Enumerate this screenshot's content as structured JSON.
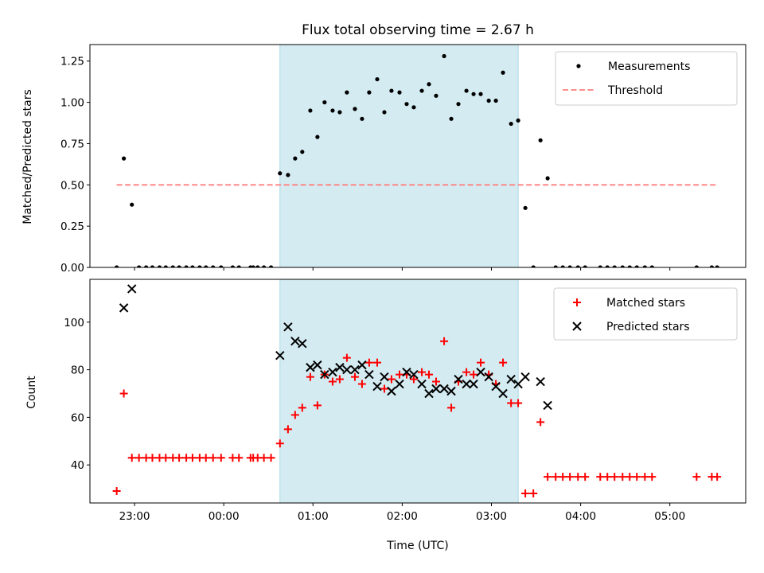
{
  "chart_data": [
    {
      "type": "scatter",
      "title": "Flux total observing time = 2.67 h",
      "xlabel": "",
      "ylabel": "Matched/Predicted stars",
      "xlim": [
        -1.5,
        5.85
      ],
      "ylim": [
        0.0,
        1.35
      ],
      "yticks": [
        0.0,
        0.25,
        0.5,
        0.75,
        1.0,
        1.25
      ],
      "ytick_labels": [
        "0.00",
        "0.25",
        "0.50",
        "0.75",
        "1.00",
        "1.25"
      ],
      "xticks": [
        -1,
        0,
        1,
        2,
        3,
        4,
        5
      ],
      "shaded_span": [
        0.63,
        3.3
      ],
      "shade_color": "#d4ebf2",
      "legend": {
        "placement": "top-right",
        "entries": [
          "Measurements",
          "Threshold"
        ]
      },
      "series": [
        {
          "name": "Measurements",
          "marker": "dot",
          "color": "#000000",
          "points": [
            [
              -1.2,
              0.0
            ],
            [
              -1.12,
              0.66
            ],
            [
              -1.03,
              0.38
            ],
            [
              -0.95,
              0.0
            ],
            [
              -0.87,
              0.0
            ],
            [
              -0.8,
              0.0
            ],
            [
              -0.72,
              0.0
            ],
            [
              -0.65,
              0.0
            ],
            [
              -0.57,
              0.0
            ],
            [
              -0.5,
              0.0
            ],
            [
              -0.42,
              0.0
            ],
            [
              -0.35,
              0.0
            ],
            [
              -0.27,
              0.0
            ],
            [
              -0.2,
              0.0
            ],
            [
              -0.12,
              0.0
            ],
            [
              -0.03,
              0.0
            ],
            [
              0.1,
              0.0
            ],
            [
              0.17,
              0.0
            ],
            [
              0.3,
              0.0
            ],
            [
              0.33,
              0.0
            ],
            [
              0.38,
              0.0
            ],
            [
              0.45,
              0.0
            ],
            [
              0.53,
              0.0
            ],
            [
              0.63,
              0.57
            ],
            [
              0.72,
              0.56
            ],
            [
              0.8,
              0.66
            ],
            [
              0.88,
              0.7
            ],
            [
              0.97,
              0.95
            ],
            [
              1.05,
              0.79
            ],
            [
              1.13,
              1.0
            ],
            [
              1.22,
              0.95
            ],
            [
              1.3,
              0.94
            ],
            [
              1.38,
              1.06
            ],
            [
              1.47,
              0.96
            ],
            [
              1.55,
              0.9
            ],
            [
              1.63,
              1.06
            ],
            [
              1.72,
              1.14
            ],
            [
              1.8,
              0.94
            ],
            [
              1.88,
              1.07
            ],
            [
              1.97,
              1.06
            ],
            [
              2.05,
              0.99
            ],
            [
              2.13,
              0.97
            ],
            [
              2.22,
              1.07
            ],
            [
              2.3,
              1.11
            ],
            [
              2.38,
              1.04
            ],
            [
              2.47,
              1.28
            ],
            [
              2.55,
              0.9
            ],
            [
              2.63,
              0.99
            ],
            [
              2.72,
              1.07
            ],
            [
              2.8,
              1.05
            ],
            [
              2.88,
              1.05
            ],
            [
              2.97,
              1.01
            ],
            [
              3.05,
              1.01
            ],
            [
              3.13,
              1.18
            ],
            [
              3.22,
              0.87
            ],
            [
              3.3,
              0.89
            ],
            [
              3.38,
              0.36
            ],
            [
              3.47,
              0.0
            ],
            [
              3.55,
              0.77
            ],
            [
              3.63,
              0.54
            ],
            [
              3.72,
              0.0
            ],
            [
              3.8,
              0.0
            ],
            [
              3.88,
              0.0
            ],
            [
              3.97,
              0.0
            ],
            [
              4.05,
              0.0
            ],
            [
              4.22,
              0.0
            ],
            [
              4.3,
              0.0
            ],
            [
              4.38,
              0.0
            ],
            [
              4.47,
              0.0
            ],
            [
              4.55,
              0.0
            ],
            [
              4.63,
              0.0
            ],
            [
              4.72,
              0.0
            ],
            [
              4.8,
              0.0
            ],
            [
              5.3,
              0.0
            ],
            [
              5.47,
              0.0
            ],
            [
              5.53,
              0.0
            ]
          ]
        },
        {
          "name": "Threshold",
          "marker": "dashed-line",
          "color": "#ff7f7f",
          "points": [
            [
              -1.2,
              0.5
            ],
            [
              5.53,
              0.5
            ]
          ]
        }
      ]
    },
    {
      "type": "scatter",
      "title": "",
      "xlabel": "Time (UTC)",
      "ylabel": "Count",
      "xlim": [
        -1.5,
        5.85
      ],
      "ylim": [
        24.0,
        118.0
      ],
      "yticks": [
        40,
        60,
        80,
        100
      ],
      "ytick_labels": [
        "40",
        "60",
        "80",
        "100"
      ],
      "xticks": [
        -1,
        0,
        1,
        2,
        3,
        4,
        5
      ],
      "xtick_labels": [
        "23:00",
        "00:00",
        "01:00",
        "02:00",
        "03:00",
        "04:00",
        "05:00"
      ],
      "shaded_span": [
        0.63,
        3.3
      ],
      "shade_color": "#d4ebf2",
      "legend": {
        "placement": "top-right",
        "entries": [
          "Matched stars",
          "Predicted stars"
        ]
      },
      "series": [
        {
          "name": "Matched stars",
          "marker": "plus",
          "color": "#ff0000",
          "points": [
            [
              -1.2,
              29
            ],
            [
              -1.12,
              70
            ],
            [
              -1.03,
              43
            ],
            [
              -0.95,
              43
            ],
            [
              -0.87,
              43
            ],
            [
              -0.8,
              43
            ],
            [
              -0.72,
              43
            ],
            [
              -0.65,
              43
            ],
            [
              -0.57,
              43
            ],
            [
              -0.5,
              43
            ],
            [
              -0.42,
              43
            ],
            [
              -0.35,
              43
            ],
            [
              -0.27,
              43
            ],
            [
              -0.2,
              43
            ],
            [
              -0.12,
              43
            ],
            [
              -0.03,
              43
            ],
            [
              0.1,
              43
            ],
            [
              0.17,
              43
            ],
            [
              0.3,
              43
            ],
            [
              0.33,
              43
            ],
            [
              0.38,
              43
            ],
            [
              0.45,
              43
            ],
            [
              0.53,
              43
            ],
            [
              0.63,
              49
            ],
            [
              0.72,
              55
            ],
            [
              0.8,
              61
            ],
            [
              0.88,
              64
            ],
            [
              0.97,
              77
            ],
            [
              1.05,
              65
            ],
            [
              1.13,
              78
            ],
            [
              1.22,
              75
            ],
            [
              1.3,
              76
            ],
            [
              1.38,
              85
            ],
            [
              1.47,
              77
            ],
            [
              1.55,
              74
            ],
            [
              1.63,
              83
            ],
            [
              1.72,
              83
            ],
            [
              1.8,
              72
            ],
            [
              1.88,
              76
            ],
            [
              1.97,
              78
            ],
            [
              2.05,
              78
            ],
            [
              2.13,
              76
            ],
            [
              2.22,
              79
            ],
            [
              2.3,
              78
            ],
            [
              2.38,
              75
            ],
            [
              2.47,
              92
            ],
            [
              2.55,
              64
            ],
            [
              2.63,
              75
            ],
            [
              2.72,
              79
            ],
            [
              2.8,
              78
            ],
            [
              2.88,
              83
            ],
            [
              2.97,
              78
            ],
            [
              3.05,
              74
            ],
            [
              3.13,
              83
            ],
            [
              3.22,
              66
            ],
            [
              3.3,
              66
            ],
            [
              3.38,
              28
            ],
            [
              3.47,
              28
            ],
            [
              3.55,
              58
            ],
            [
              3.63,
              35
            ],
            [
              3.72,
              35
            ],
            [
              3.8,
              35
            ],
            [
              3.88,
              35
            ],
            [
              3.97,
              35
            ],
            [
              4.05,
              35
            ],
            [
              4.22,
              35
            ],
            [
              4.3,
              35
            ],
            [
              4.38,
              35
            ],
            [
              4.47,
              35
            ],
            [
              4.55,
              35
            ],
            [
              4.63,
              35
            ],
            [
              4.72,
              35
            ],
            [
              4.8,
              35
            ],
            [
              5.3,
              35
            ],
            [
              5.47,
              35
            ],
            [
              5.53,
              35
            ]
          ]
        },
        {
          "name": "Predicted stars",
          "marker": "x",
          "color": "#000000",
          "points": [
            [
              -1.12,
              106
            ],
            [
              -1.03,
              114
            ],
            [
              0.63,
              86
            ],
            [
              0.72,
              98
            ],
            [
              0.8,
              92
            ],
            [
              0.88,
              91
            ],
            [
              0.97,
              81
            ],
            [
              1.05,
              82
            ],
            [
              1.13,
              78
            ],
            [
              1.22,
              79
            ],
            [
              1.3,
              81
            ],
            [
              1.38,
              80
            ],
            [
              1.47,
              80
            ],
            [
              1.55,
              82
            ],
            [
              1.63,
              78
            ],
            [
              1.72,
              73
            ],
            [
              1.8,
              77
            ],
            [
              1.88,
              71
            ],
            [
              1.97,
              74
            ],
            [
              2.05,
              79
            ],
            [
              2.13,
              78
            ],
            [
              2.22,
              74
            ],
            [
              2.3,
              70
            ],
            [
              2.38,
              72
            ],
            [
              2.47,
              72
            ],
            [
              2.55,
              71
            ],
            [
              2.63,
              76
            ],
            [
              2.72,
              74
            ],
            [
              2.8,
              74
            ],
            [
              2.88,
              79
            ],
            [
              2.97,
              77
            ],
            [
              3.05,
              73
            ],
            [
              3.13,
              70
            ],
            [
              3.22,
              76
            ],
            [
              3.3,
              74
            ],
            [
              3.38,
              77
            ],
            [
              3.55,
              75
            ],
            [
              3.63,
              65
            ]
          ]
        }
      ]
    }
  ]
}
